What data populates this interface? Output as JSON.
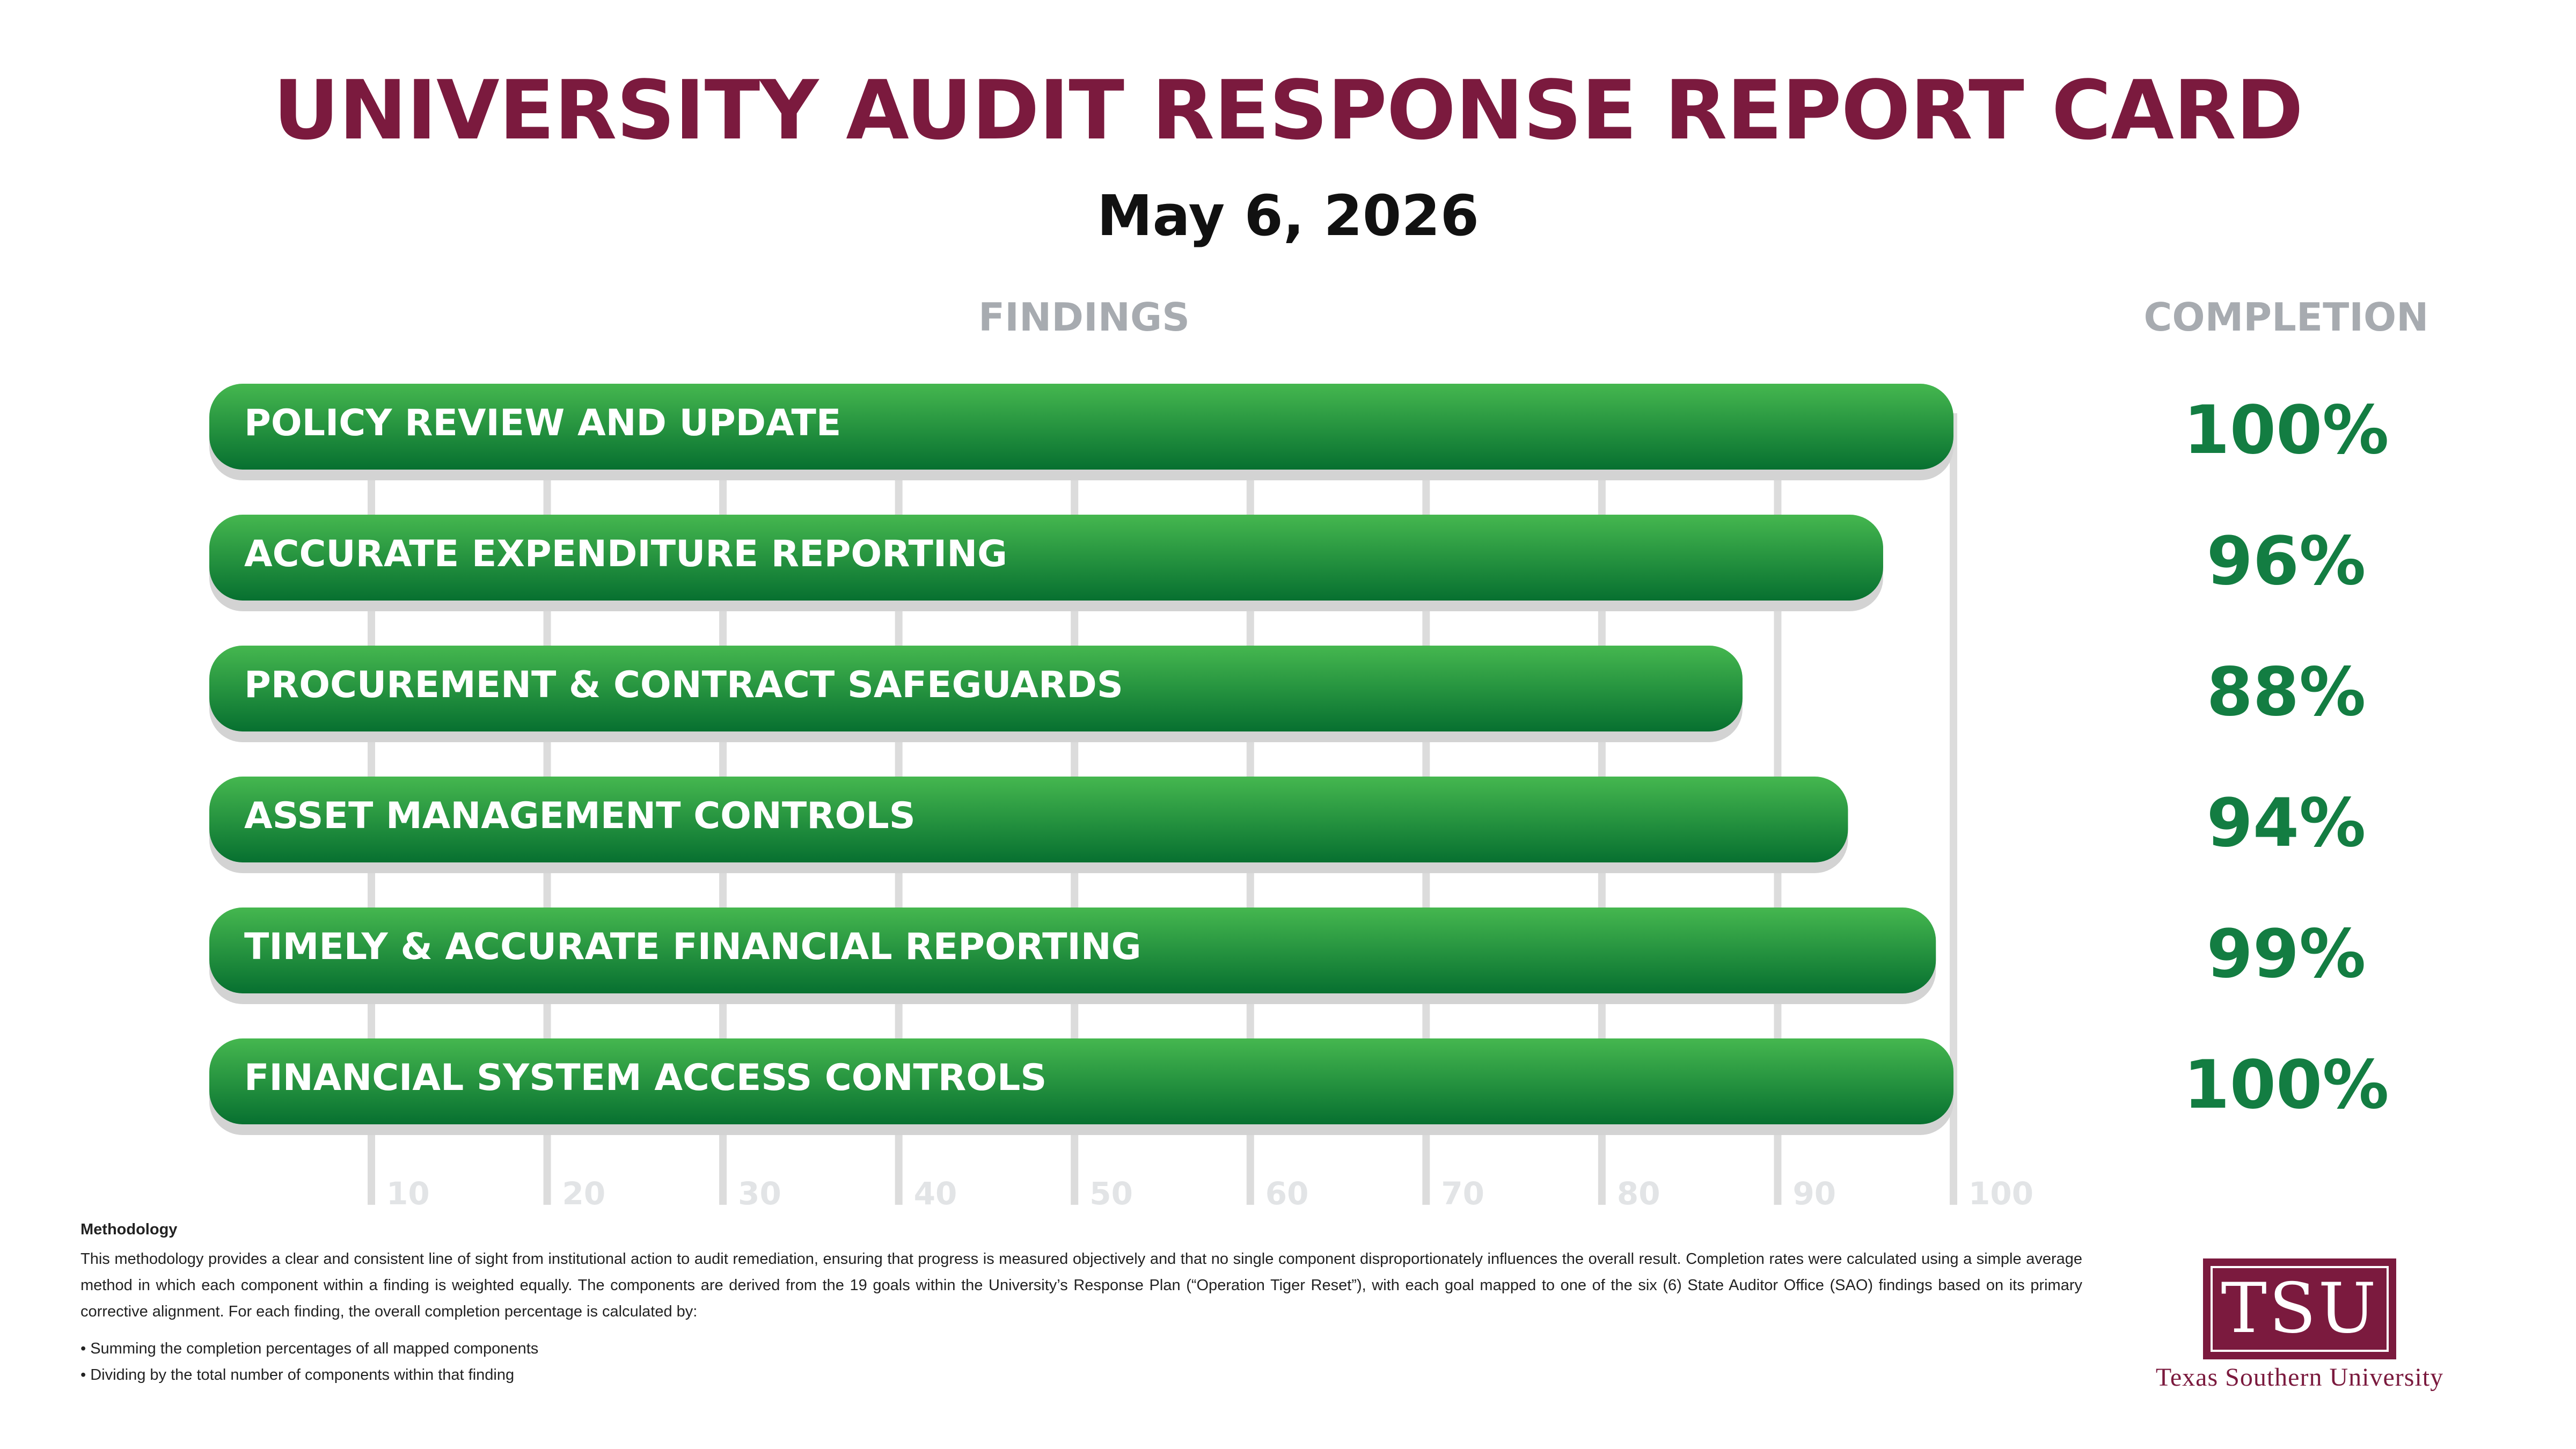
{
  "title": "UNIVERSITY AUDIT RESPONSE REPORT CARD",
  "date": "May 6, 2026",
  "headers": {
    "findings": "FINDINGS",
    "completion": "COMPLETION"
  },
  "colors": {
    "title": "#7b1a3e",
    "bar_light": "#45b74f",
    "bar_dark": "#077030",
    "percent": "#137d42",
    "gridline": "#dcdcdc",
    "header": "#a7abb0"
  },
  "chart_data": {
    "type": "bar",
    "orientation": "horizontal",
    "categories": [
      "POLICY REVIEW AND UPDATE",
      "ACCURATE EXPENDITURE REPORTING",
      "PROCUREMENT & CONTRACT SAFEGUARDS",
      "ASSET MANAGEMENT CONTROLS",
      "TIMELY & ACCURATE FINANCIAL REPORTING",
      "FINANCIAL SYSTEM ACCESS CONTROLS"
    ],
    "values": [
      100,
      96,
      88,
      94,
      99,
      100
    ],
    "value_labels": [
      "100%",
      "96%",
      "88%",
      "94%",
      "99%",
      "100%"
    ],
    "xlim": [
      0,
      100
    ],
    "xticks": [
      "10",
      "20",
      "30",
      "40",
      "50",
      "60",
      "70",
      "80",
      "90",
      "100"
    ],
    "grid": true
  },
  "methodology": {
    "title": "Methodology",
    "body": "This methodology provides a clear and consistent line of sight from institutional action to audit remediation, ensuring that progress is measured objectively and that no single component disproportionately influences the overall result. Completion rates were calculated using a simple average method in which each component within a finding is weighted equally. The components are derived from the 19 goals within the University’s Response Plan (“Operation Tiger Reset”), with each goal mapped to one of the six (6) State Auditor Office (SAO) findings based on its primary corrective alignment. For each finding, the overall completion percentage is calculated by:",
    "bullets": [
      "• Summing the completion percentages of all mapped components",
      "• Dividing by the total number of components within that finding"
    ]
  },
  "logo": {
    "text": "TSU",
    "caption": "Texas Southern University"
  }
}
